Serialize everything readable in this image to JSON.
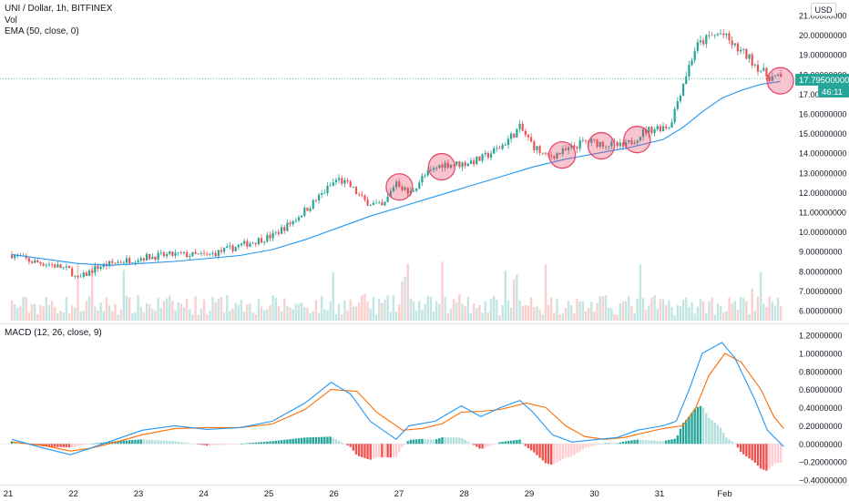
{
  "header": {
    "symbol": "UNI / Dollar, 1h, BITFINEX",
    "vol_label": "Vol",
    "ema_label": "EMA (50, close, 0)",
    "currency_button": "USD"
  },
  "price_badge": {
    "value": "17.79500000",
    "countdown": "46:11",
    "color": "#26a69a"
  },
  "macd_label": "MACD (12, 26, close, 9)",
  "colors": {
    "up": "#26a69a",
    "down": "#ef5350",
    "ema": "#2196f3",
    "macd": "#2196f3",
    "signal": "#ff6d00",
    "circle": "#e8496b"
  },
  "chart_data": [
    {
      "type": "candlestick",
      "title": "UNI / Dollar, 1h, BITFINEX",
      "y_ticks": [
        "21.00000000",
        "20.00000000",
        "19.00000000",
        "18.00000000",
        "17.00000000",
        "16.00000000",
        "15.00000000",
        "14.00000000",
        "13.00000000",
        "12.00000000",
        "11.00000000",
        "10.00000000",
        "9.00000000",
        "8.00000000",
        "7.00000000",
        "6.00000000"
      ],
      "ylim": [
        5.7,
        21.2
      ],
      "x_ticks": [
        "21",
        "22",
        "23",
        "24",
        "25",
        "26",
        "27",
        "28",
        "29",
        "30",
        "31",
        "Feb"
      ],
      "close_path": {
        "day": [
          0,
          0.3,
          0.6,
          0.9,
          1.0,
          1.3,
          1.6,
          2.0,
          2.5,
          3.0,
          3.5,
          4.0,
          4.3,
          4.6,
          5.0,
          5.2,
          5.4,
          5.7,
          5.9,
          6.1,
          6.3,
          6.6,
          6.9,
          7.2,
          7.5,
          7.8,
          8.0,
          8.2,
          8.5,
          8.8,
          9.1,
          9.4,
          9.7,
          9.9,
          10.1,
          10.3,
          10.5,
          10.7,
          10.9,
          11.1,
          11.3,
          11.6,
          11.85
        ],
        "price": [
          8.85,
          8.5,
          8.35,
          8.05,
          7.55,
          8.2,
          8.45,
          8.7,
          8.85,
          8.8,
          9.3,
          9.8,
          10.5,
          11.4,
          12.7,
          12.3,
          11.6,
          11.25,
          12.6,
          11.9,
          12.75,
          13.45,
          13.45,
          13.7,
          14.3,
          15.3,
          14.4,
          13.8,
          14.1,
          14.6,
          14.5,
          14.3,
          15.1,
          15.3,
          15.4,
          17.5,
          19.4,
          19.9,
          20.1,
          19.4,
          18.9,
          17.9,
          17.8
        ]
      },
      "ema50": {
        "day": [
          0,
          1.0,
          1.5,
          2.5,
          3.5,
          4.0,
          4.5,
          5.0,
          5.5,
          6.0,
          6.5,
          7.0,
          7.5,
          8.0,
          8.5,
          9.0,
          9.5,
          10.0,
          10.3,
          10.6,
          10.9,
          11.2,
          11.5,
          11.8
        ],
        "price": [
          8.85,
          8.4,
          8.3,
          8.5,
          8.8,
          9.1,
          9.6,
          10.2,
          10.8,
          11.3,
          11.8,
          12.3,
          12.8,
          13.3,
          13.7,
          14.0,
          14.3,
          14.7,
          15.3,
          16.1,
          16.8,
          17.2,
          17.5,
          17.65
        ]
      },
      "last_price": 17.795,
      "highlight_circles_day": [
        5.95,
        6.6,
        8.45,
        9.05,
        9.6,
        11.8
      ]
    },
    {
      "type": "line",
      "title": "MACD (12, 26, close, 9)",
      "y_ticks": [
        "1.20000000",
        "1.00000000",
        "0.80000000",
        "0.60000000",
        "0.40000000",
        "0.20000000",
        "0.00000000",
        "−0.20000000",
        "−0.40000000"
      ],
      "ylim": [
        -0.42,
        1.25
      ],
      "series": [
        {
          "name": "MACD",
          "day": [
            0,
            0.5,
            0.9,
            1.2,
            1.6,
            2.0,
            2.5,
            3.0,
            3.5,
            4.0,
            4.5,
            4.9,
            5.2,
            5.5,
            5.9,
            6.1,
            6.5,
            6.9,
            7.2,
            7.5,
            7.8,
            8.0,
            8.3,
            8.6,
            9.0,
            9.3,
            9.6,
            10.0,
            10.2,
            10.4,
            10.6,
            10.9,
            11.1,
            11.4,
            11.6,
            11.85
          ],
          "value": [
            0.05,
            -0.05,
            -0.12,
            -0.05,
            0.05,
            0.15,
            0.2,
            0.16,
            0.18,
            0.25,
            0.45,
            0.68,
            0.55,
            0.25,
            0.05,
            0.2,
            0.25,
            0.42,
            0.3,
            0.4,
            0.48,
            0.35,
            0.1,
            0.02,
            0.05,
            0.07,
            0.15,
            0.2,
            0.25,
            0.6,
            1.0,
            1.12,
            0.95,
            0.5,
            0.15,
            -0.03
          ]
        },
        {
          "name": "Signal",
          "day": [
            0,
            0.5,
            0.9,
            1.2,
            1.6,
            2.0,
            2.5,
            3.0,
            3.5,
            4.0,
            4.5,
            4.9,
            5.3,
            5.6,
            6.0,
            6.3,
            6.6,
            6.9,
            7.2,
            7.5,
            7.9,
            8.2,
            8.5,
            8.8,
            9.1,
            9.4,
            9.7,
            10.0,
            10.3,
            10.5,
            10.7,
            10.95,
            11.2,
            11.5,
            11.7,
            11.85
          ],
          "value": [
            0.02,
            -0.02,
            -0.08,
            -0.05,
            0.02,
            0.1,
            0.17,
            0.18,
            0.18,
            0.22,
            0.38,
            0.6,
            0.58,
            0.35,
            0.15,
            0.17,
            0.22,
            0.35,
            0.36,
            0.38,
            0.45,
            0.4,
            0.2,
            0.08,
            0.05,
            0.07,
            0.12,
            0.17,
            0.2,
            0.4,
            0.75,
            1.0,
            0.9,
            0.6,
            0.3,
            0.17
          ]
        }
      ],
      "histogram": "MACD minus Signal"
    }
  ]
}
